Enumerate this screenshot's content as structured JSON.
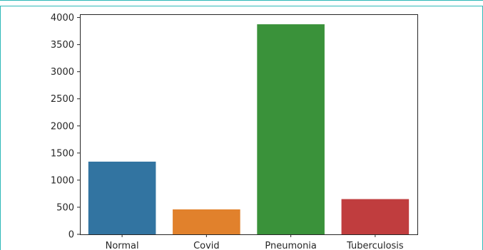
{
  "chart_data": {
    "type": "bar",
    "categories": [
      "Normal",
      "Covid",
      "Pneumonia",
      "Tuberculosis"
    ],
    "values": [
      1341,
      460,
      3875,
      650
    ],
    "colors": [
      "#3274a1",
      "#e1812c",
      "#3a923a",
      "#c03d3e"
    ],
    "ylim": [
      0,
      4060
    ],
    "yticks": [
      0,
      500,
      1000,
      1500,
      2000,
      2500,
      3000,
      3500,
      4000
    ],
    "ytick_labels": [
      "0",
      "500",
      "1000",
      "1500",
      "2000",
      "2500",
      "3000",
      "3500",
      "4000"
    ],
    "grid": false
  }
}
